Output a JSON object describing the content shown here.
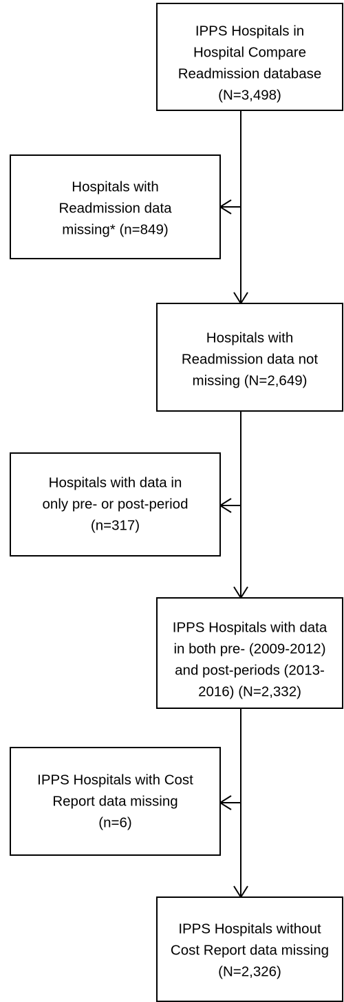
{
  "nodes": [
    {
      "lines": [
        "IPPS Hospitals in",
        "Hospital Compare",
        "Readmission database",
        "(N=3,498)"
      ]
    },
    {
      "lines": [
        "Hospitals with",
        "Readmission data",
        "missing* (n=849)"
      ]
    },
    {
      "lines": [
        "Hospitals with",
        "Readmission data not",
        "missing (N=2,649)"
      ]
    },
    {
      "lines": [
        "Hospitals with data in",
        "only pre- or  post-period",
        "(n=317)"
      ]
    },
    {
      "lines": [
        "IPPS Hospitals with data",
        "in both pre- (2009-2012)",
        "and post-periods (2013-",
        "2016) (N=2,332)"
      ]
    },
    {
      "lines": [
        "IPPS Hospitals with Cost",
        "Report data missing",
        "(n=6)"
      ]
    },
    {
      "lines": [
        "IPPS Hospitals without",
        "Cost Report data missing",
        "(N=2,326)"
      ]
    }
  ]
}
